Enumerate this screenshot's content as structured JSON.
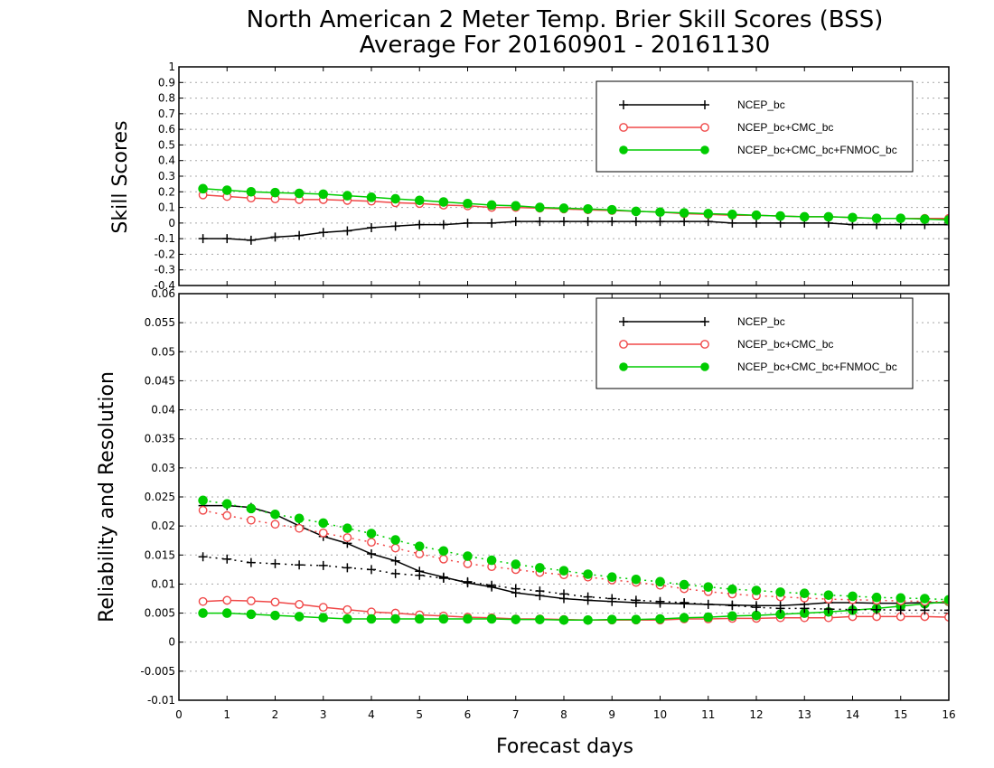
{
  "title_line1": "North American 2 Meter Temp. Brier Skill Scores (BSS)",
  "title_line2": "Average For 20160901 - 20161130",
  "colors": {
    "ncep": "#000000",
    "cmc": "#f04848",
    "fnmoc": "#00cc00"
  },
  "chart_data": [
    {
      "type": "line",
      "ylabel": "Skill Scores",
      "ylim": [
        -0.4,
        1.0
      ],
      "yticks": [
        "-0.4",
        "-0.3",
        "-0.2",
        "-0.1",
        "0",
        "0.1",
        "0.2",
        "0.3",
        "0.4",
        "0.5",
        "0.6",
        "0.7",
        "0.8",
        "0.9",
        "1"
      ],
      "xlim": [
        0,
        16
      ],
      "grid": true,
      "legend_position": "top-right",
      "legend": [
        "NCEP_bc",
        "NCEP_bc+CMC_bc",
        "NCEP_bc+CMC_bc+FNMOC_bc"
      ],
      "x": [
        0.5,
        1,
        1.5,
        2,
        2.5,
        3,
        3.5,
        4,
        4.5,
        5,
        5.5,
        6,
        6.5,
        7,
        7.5,
        8,
        8.5,
        9,
        9.5,
        10,
        10.5,
        11,
        11.5,
        12,
        12.5,
        13,
        13.5,
        14,
        14.5,
        15,
        15.5,
        16
      ],
      "series": [
        {
          "name": "NCEP_bc",
          "marker": "plus",
          "style": "solid",
          "values": [
            -0.1,
            -0.1,
            -0.11,
            -0.09,
            -0.08,
            -0.06,
            -0.05,
            -0.03,
            -0.02,
            -0.01,
            -0.01,
            0.0,
            0.0,
            0.01,
            0.01,
            0.01,
            0.01,
            0.01,
            0.01,
            0.01,
            0.01,
            0.01,
            0.0,
            0.0,
            0.0,
            0.0,
            0.0,
            -0.01,
            -0.01,
            -0.01,
            -0.01,
            -0.01
          ]
        },
        {
          "name": "NCEP_bc+CMC_bc",
          "marker": "open-circle",
          "style": "solid",
          "values": [
            0.18,
            0.17,
            0.16,
            0.155,
            0.15,
            0.15,
            0.145,
            0.14,
            0.13,
            0.125,
            0.115,
            0.11,
            0.1,
            0.1,
            0.095,
            0.09,
            0.085,
            0.08,
            0.075,
            0.07,
            0.06,
            0.055,
            0.05,
            0.05,
            0.045,
            0.04,
            0.04,
            0.035,
            0.03,
            0.03,
            0.03,
            0.03
          ]
        },
        {
          "name": "NCEP_bc+CMC_bc+FNMOC_bc",
          "marker": "filled-circle",
          "style": "solid",
          "values": [
            0.22,
            0.21,
            0.2,
            0.195,
            0.19,
            0.185,
            0.175,
            0.165,
            0.155,
            0.145,
            0.135,
            0.125,
            0.115,
            0.11,
            0.1,
            0.095,
            0.09,
            0.085,
            0.075,
            0.07,
            0.065,
            0.06,
            0.055,
            0.05,
            0.045,
            0.04,
            0.04,
            0.035,
            0.03,
            0.03,
            0.025,
            0.02
          ]
        }
      ]
    },
    {
      "type": "line",
      "ylabel": "Reliability and Resolution",
      "ylim": [
        -0.01,
        0.06
      ],
      "yticks": [
        "-0.01",
        "-0.005",
        "0",
        "0.005",
        "0.01",
        "0.015",
        "0.02",
        "0.025",
        "0.03",
        "0.035",
        "0.04",
        "0.045",
        "0.05",
        "0.055",
        "0.06"
      ],
      "xlabel": "Forecast days",
      "xlim": [
        0,
        16
      ],
      "xticks": [
        "0",
        "1",
        "2",
        "3",
        "4",
        "5",
        "6",
        "7",
        "8",
        "9",
        "10",
        "11",
        "12",
        "13",
        "14",
        "15",
        "16"
      ],
      "grid": true,
      "legend_position": "top-right",
      "legend": [
        "NCEP_bc",
        "NCEP_bc+CMC_bc",
        "NCEP_bc+CMC_bc+FNMOC_bc"
      ],
      "x": [
        0.5,
        1,
        1.5,
        2,
        2.5,
        3,
        3.5,
        4,
        4.5,
        5,
        5.5,
        6,
        6.5,
        7,
        7.5,
        8,
        8.5,
        9,
        9.5,
        10,
        10.5,
        11,
        11.5,
        12,
        12.5,
        13,
        13.5,
        14,
        14.5,
        15,
        15.5,
        16
      ],
      "series": [
        {
          "name": "NCEP_bc",
          "marker": "plus",
          "style": "solid",
          "values": [
            0.0235,
            0.0235,
            0.0232,
            0.022,
            0.02,
            0.0182,
            0.017,
            0.0152,
            0.014,
            0.0122,
            0.0112,
            0.0102,
            0.0095,
            0.0085,
            0.008,
            0.0075,
            0.0072,
            0.007,
            0.0068,
            0.0067,
            0.0066,
            0.0065,
            0.0064,
            0.0063,
            0.0063,
            0.0065,
            0.0068,
            0.0068,
            0.0067,
            0.0067,
            0.0068,
            0.0068
          ]
        },
        {
          "name": "NCEP_bc+CMC_bc",
          "marker": "open-circle",
          "style": "solid",
          "values": [
            0.007,
            0.0072,
            0.0071,
            0.0069,
            0.0065,
            0.006,
            0.0056,
            0.0052,
            0.005,
            0.0047,
            0.0045,
            0.0043,
            0.0042,
            0.004,
            0.004,
            0.0039,
            0.0038,
            0.0038,
            0.0038,
            0.0038,
            0.004,
            0.004,
            0.0041,
            0.0041,
            0.0042,
            0.0042,
            0.0042,
            0.0044,
            0.0044,
            0.0044,
            0.0044,
            0.0043
          ]
        },
        {
          "name": "NCEP_bc+CMC_bc+FNMOC_bc",
          "marker": "filled-circle",
          "style": "solid",
          "values": [
            0.005,
            0.005,
            0.0048,
            0.0046,
            0.0044,
            0.0042,
            0.004,
            0.004,
            0.004,
            0.004,
            0.004,
            0.004,
            0.004,
            0.0039,
            0.0039,
            0.0038,
            0.0038,
            0.0039,
            0.0039,
            0.004,
            0.0042,
            0.0043,
            0.0045,
            0.0046,
            0.0048,
            0.005,
            0.0052,
            0.0055,
            0.0058,
            0.0062,
            0.0066,
            0.007
          ]
        },
        {
          "name": "",
          "marker": "plus",
          "style": "dotted",
          "color_of": "ncep",
          "values": [
            0.0147,
            0.0143,
            0.0137,
            0.0135,
            0.0133,
            0.0132,
            0.0128,
            0.0125,
            0.0118,
            0.0115,
            0.011,
            0.0104,
            0.0098,
            0.0092,
            0.0088,
            0.0083,
            0.0078,
            0.0075,
            0.0072,
            0.007,
            0.0068,
            0.0065,
            0.0063,
            0.006,
            0.0058,
            0.0058,
            0.0057,
            0.0056,
            0.0056,
            0.0055,
            0.0055,
            0.0055
          ]
        },
        {
          "name": "",
          "marker": "open-circle",
          "style": "dotted",
          "color_of": "cmc",
          "values": [
            0.0227,
            0.0218,
            0.021,
            0.0203,
            0.0196,
            0.0188,
            0.018,
            0.0172,
            0.0162,
            0.0152,
            0.0143,
            0.0135,
            0.013,
            0.0125,
            0.012,
            0.0116,
            0.0112,
            0.0107,
            0.0103,
            0.0098,
            0.0092,
            0.0087,
            0.0083,
            0.008,
            0.0078,
            0.0076,
            0.0074,
            0.0073,
            0.0072,
            0.0071,
            0.007,
            0.007
          ]
        },
        {
          "name": "",
          "marker": "filled-circle",
          "style": "dotted",
          "color_of": "fnmoc",
          "values": [
            0.0244,
            0.0238,
            0.023,
            0.022,
            0.0213,
            0.0205,
            0.0196,
            0.0187,
            0.0176,
            0.0165,
            0.0157,
            0.0148,
            0.0141,
            0.0134,
            0.0128,
            0.0123,
            0.0117,
            0.0112,
            0.0108,
            0.0104,
            0.0099,
            0.0095,
            0.0091,
            0.0089,
            0.0086,
            0.0084,
            0.0081,
            0.0079,
            0.0077,
            0.0076,
            0.0075,
            0.0073
          ]
        }
      ]
    }
  ]
}
